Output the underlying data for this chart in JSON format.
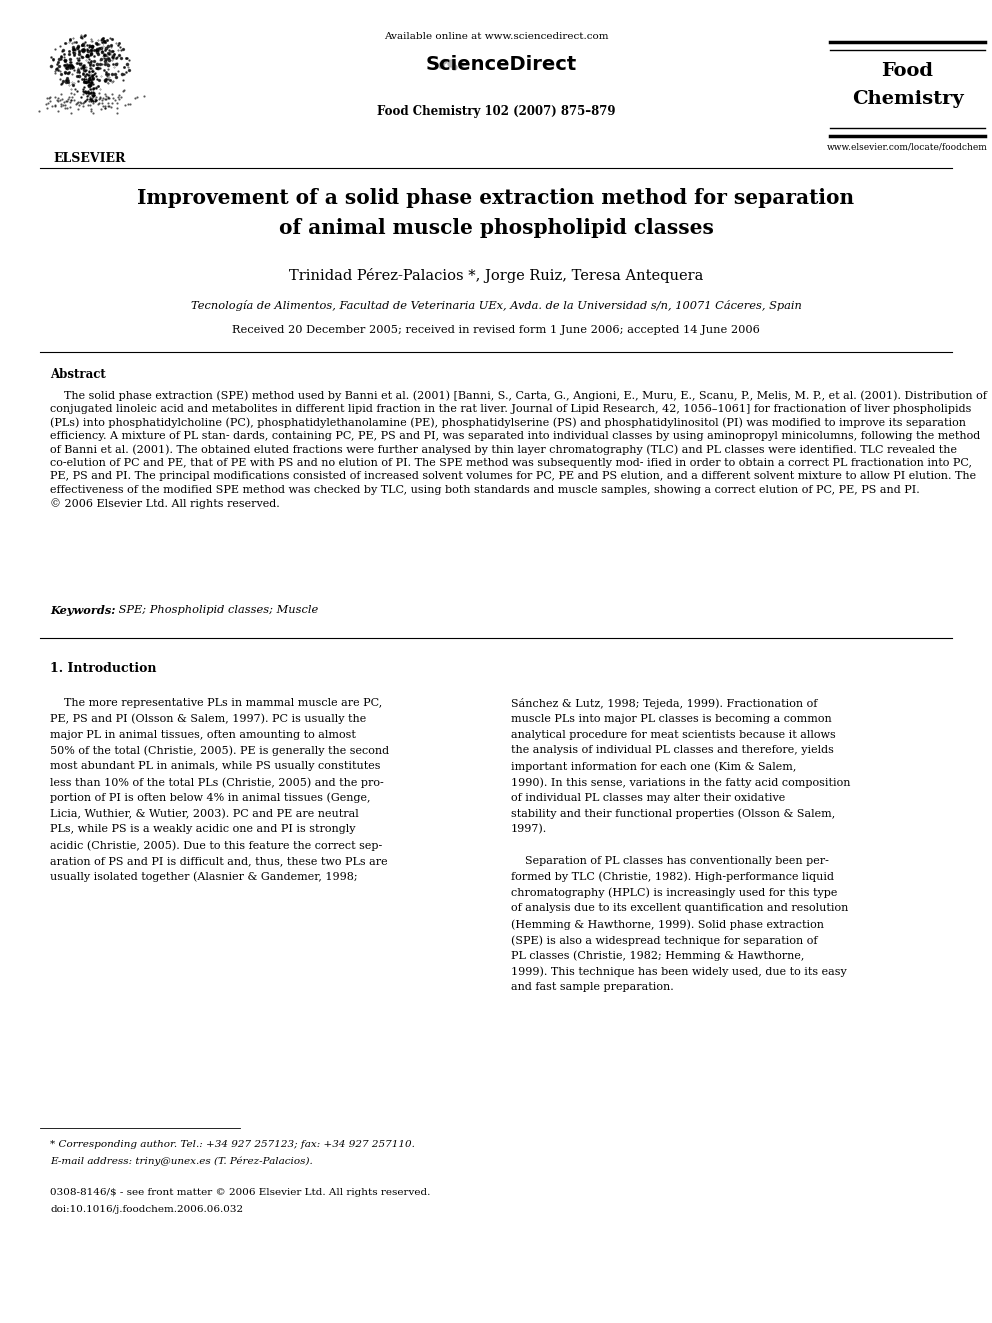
{
  "page_width": 9.92,
  "page_height": 13.23,
  "dpi": 100,
  "background_color": "#ffffff",
  "header": {
    "available_online_text": "Available online at www.sciencedirect.com",
    "sciencedirect_text": "ScienceDirect",
    "journal_line1": "Food Chemistry 102 (2007) 875–879",
    "journal_name_line1": "Food",
    "journal_name_line2": "Chemistry",
    "journal_url": "www.elsevier.com/locate/foodchem",
    "elsevier_text": "ELSEVIER"
  },
  "title_line1": "Improvement of a solid phase extraction method for separation",
  "title_line2": "of animal muscle phospholipid classes",
  "authors": "Trinidad Pérez-Palacios *, Jorge Ruiz, Teresa Antequera",
  "affiliation": "Tecnología de Alimentos, Facultad de Veterinaria UEx, Avda. de la Universidad s/n, 10071 Cáceres, Spain",
  "received": "Received 20 December 2005; received in revised form 1 June 2006; accepted 14 June 2006",
  "abstract_title": "Abstract",
  "abstract_body": "    The solid phase extraction (SPE) method used by Banni et al. (2001) [Banni, S., Carta, G., Angioni, E., Muru, E., Scanu, P., Melis, M. P., et al. (2001). Distribution of conjugated linoleic acid and metabolites in different lipid fraction in the rat liver. Journal of Lipid Research, 42, 1056–1061] for fractionation of liver phospholipids (PLs) into phosphatidylcholine (PC), phosphatidylethanolamine (PE), phosphatidylserine (PS) and phosphatidylinositol (PI) was modified to improve its separation efficiency. A mixture of PL stan- dards, containing PC, PE, PS and PI, was separated into individual classes by using aminopropyl minicolumns, following the method of Banni et al. (2001). The obtained eluted fractions were further analysed by thin layer chromatography (TLC) and PL classes were identified. TLC revealed the co-elution of PC and PE, that of PE with PS and no elution of PI. The SPE method was subsequently mod- ified in order to obtain a correct PL fractionation into PC, PE, PS and PI. The principal modifications consisted of increased solvent volumes for PC, PE and PS elution, and a different solvent mixture to allow PI elution. The effectiveness of the modified SPE method was checked by TLC, using both standards and muscle samples, showing a correct elution of PC, PE, PS and PI.\n© 2006 Elsevier Ltd. All rights reserved.",
  "keywords_label": "Keywords:",
  "keywords_text": " SPE; Phospholipid classes; Muscle",
  "section1_title": "1. Introduction",
  "col1_lines": [
    "    The more representative PLs in mammal muscle are PC,",
    "PE, PS and PI (Olsson & Salem, 1997). PC is usually the",
    "major PL in animal tissues, often amounting to almost",
    "50% of the total (Christie, 2005). PE is generally the second",
    "most abundant PL in animals, while PS usually constitutes",
    "less than 10% of the total PLs (Christie, 2005) and the pro-",
    "portion of PI is often below 4% in animal tissues (Genge,",
    "Licia, Wuthier, & Wutier, 2003). PC and PE are neutral",
    "PLs, while PS is a weakly acidic one and PI is strongly",
    "acidic (Christie, 2005). Due to this feature the correct sep-",
    "aration of PS and PI is difficult and, thus, these two PLs are",
    "usually isolated together (Alasnier & Gandemer, 1998;"
  ],
  "col2_lines": [
    "Sánchez & Lutz, 1998; Tejeda, 1999). Fractionation of",
    "muscle PLs into major PL classes is becoming a common",
    "analytical procedure for meat scientists because it allows",
    "the analysis of individual PL classes and therefore, yields",
    "important information for each one (Kim & Salem,",
    "1990). In this sense, variations in the fatty acid composition",
    "of individual PL classes may alter their oxidative",
    "stability and their functional properties (Olsson & Salem,",
    "1997).",
    "",
    "    Separation of PL classes has conventionally been per-",
    "formed by TLC (Christie, 1982). High-performance liquid",
    "chromatography (HPLC) is increasingly used for this type",
    "of analysis due to its excellent quantification and resolution",
    "(Hemming & Hawthorne, 1999). Solid phase extraction",
    "(SPE) is also a widespread technique for separation of",
    "PL classes (Christie, 1982; Hemming & Hawthorne,",
    "1999). This technique has been widely used, due to its easy",
    "and fast sample preparation."
  ],
  "footnote_line1": "* Corresponding author. Tel.: +34 927 257123; fax: +34 927 257110.",
  "footnote_line2": "E-mail address: triny@unex.es (T. Pérez-Palacios).",
  "copyright_line1": "0308-8146/$ - see front matter © 2006 Elsevier Ltd. All rights reserved.",
  "copyright_line2": "doi:10.1016/j.foodchem.2006.06.032"
}
